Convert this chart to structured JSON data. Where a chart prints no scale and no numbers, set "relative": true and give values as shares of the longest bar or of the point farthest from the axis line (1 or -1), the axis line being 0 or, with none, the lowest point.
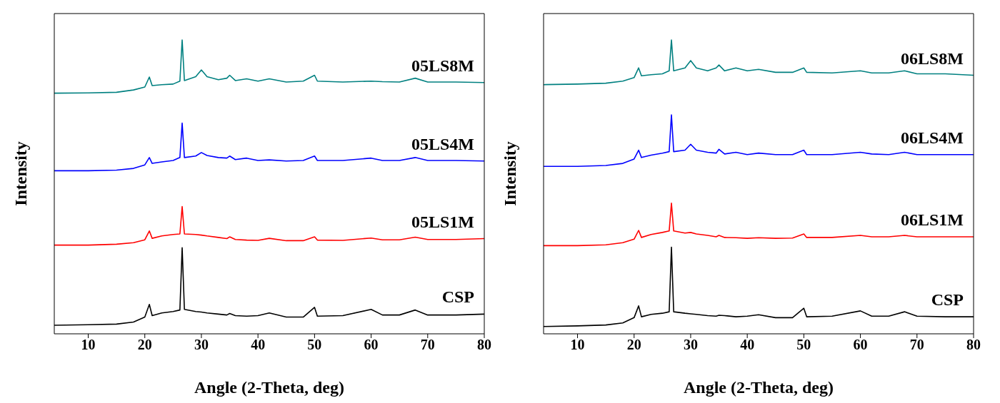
{
  "chart_data": [
    {
      "type": "line",
      "xlabel": "Angle (2-Theta, deg)",
      "ylabel": "Intensity",
      "relative": true,
      "xlim": [
        4,
        80
      ],
      "xticks": [
        10,
        20,
        30,
        40,
        50,
        60,
        70,
        80
      ],
      "grid": false,
      "legend": false,
      "marker": "none",
      "line_style": "solid",
      "x": [
        4,
        10,
        15,
        18,
        20,
        20.8,
        21.3,
        23,
        25,
        26.2,
        26.6,
        27,
        29,
        30,
        31,
        33,
        34.5,
        35,
        36,
        38,
        40,
        42,
        45,
        48,
        50,
        50.5,
        55,
        60,
        62,
        65,
        67.8,
        70,
        75,
        80
      ],
      "series": [
        {
          "name": "CSP",
          "color": "#000000",
          "values": [
            0.029,
            0.031,
            0.033,
            0.04,
            0.057,
            0.1,
            0.062,
            0.071,
            0.076,
            0.081,
            0.293,
            0.083,
            0.076,
            0.074,
            0.071,
            0.067,
            0.064,
            0.069,
            0.062,
            0.06,
            0.062,
            0.071,
            0.057,
            0.057,
            0.09,
            0.06,
            0.062,
            0.083,
            0.064,
            0.064,
            0.081,
            0.064,
            0.064,
            0.067
          ]
        },
        {
          "name": "05LS1M",
          "color": "#ff0000",
          "values": [
            0.302,
            0.302,
            0.305,
            0.31,
            0.32,
            0.35,
            0.325,
            0.333,
            0.338,
            0.34,
            0.433,
            0.34,
            0.338,
            0.336,
            0.333,
            0.328,
            0.324,
            0.33,
            0.321,
            0.319,
            0.318,
            0.325,
            0.317,
            0.317,
            0.33,
            0.319,
            0.318,
            0.326,
            0.32,
            0.32,
            0.329,
            0.321,
            0.321,
            0.324
          ]
        },
        {
          "name": "05LS4M",
          "color": "#0000ff",
          "values": [
            0.555,
            0.555,
            0.557,
            0.563,
            0.575,
            0.6,
            0.58,
            0.585,
            0.59,
            0.6,
            0.717,
            0.6,
            0.605,
            0.617,
            0.607,
            0.6,
            0.598,
            0.605,
            0.593,
            0.598,
            0.59,
            0.592,
            0.588,
            0.59,
            0.605,
            0.59,
            0.59,
            0.598,
            0.59,
            0.59,
            0.6,
            0.59,
            0.59,
            0.588
          ]
        },
        {
          "name": "05LS8M",
          "color": "#008080",
          "values": [
            0.819,
            0.82,
            0.822,
            0.83,
            0.84,
            0.874,
            0.845,
            0.848,
            0.85,
            0.86,
            1.0,
            0.862,
            0.875,
            0.898,
            0.875,
            0.865,
            0.87,
            0.88,
            0.862,
            0.868,
            0.86,
            0.868,
            0.857,
            0.86,
            0.88,
            0.86,
            0.857,
            0.86,
            0.858,
            0.857,
            0.87,
            0.857,
            0.857,
            0.855
          ]
        }
      ]
    },
    {
      "type": "line",
      "xlabel": "Angle (2-Theta, deg)",
      "ylabel": "Intensity",
      "relative": true,
      "xlim": [
        4,
        80
      ],
      "xticks": [
        10,
        20,
        30,
        40,
        50,
        60,
        70,
        80
      ],
      "grid": false,
      "legend": false,
      "marker": "none",
      "line_style": "solid",
      "x": [
        4,
        10,
        15,
        18,
        20,
        20.8,
        21.3,
        23,
        25,
        26.2,
        26.6,
        27,
        29,
        30,
        31,
        33,
        34.5,
        35,
        36,
        38,
        40,
        42,
        45,
        48,
        50,
        50.5,
        55,
        60,
        62,
        65,
        67.8,
        70,
        75,
        80
      ],
      "series": [
        {
          "name": "CSP",
          "color": "#000000",
          "values": [
            0.025,
            0.027,
            0.03,
            0.037,
            0.055,
            0.095,
            0.058,
            0.066,
            0.07,
            0.075,
            0.295,
            0.075,
            0.07,
            0.068,
            0.066,
            0.062,
            0.06,
            0.063,
            0.062,
            0.058,
            0.06,
            0.065,
            0.055,
            0.055,
            0.087,
            0.058,
            0.06,
            0.078,
            0.06,
            0.06,
            0.075,
            0.06,
            0.058,
            0.058
          ]
        },
        {
          "name": "06LS1M",
          "color": "#ff0000",
          "values": [
            0.3,
            0.3,
            0.303,
            0.31,
            0.322,
            0.352,
            0.328,
            0.338,
            0.345,
            0.35,
            0.445,
            0.35,
            0.343,
            0.345,
            0.34,
            0.335,
            0.33,
            0.335,
            0.328,
            0.327,
            0.325,
            0.327,
            0.325,
            0.326,
            0.34,
            0.328,
            0.328,
            0.335,
            0.33,
            0.33,
            0.335,
            0.33,
            0.33,
            0.33
          ]
        },
        {
          "name": "06LS4M",
          "color": "#0000ff",
          "values": [
            0.57,
            0.57,
            0.573,
            0.58,
            0.595,
            0.625,
            0.6,
            0.608,
            0.615,
            0.62,
            0.745,
            0.62,
            0.625,
            0.645,
            0.625,
            0.618,
            0.615,
            0.628,
            0.612,
            0.618,
            0.61,
            0.615,
            0.61,
            0.61,
            0.625,
            0.61,
            0.61,
            0.618,
            0.612,
            0.61,
            0.618,
            0.61,
            0.61,
            0.61
          ]
        },
        {
          "name": "06LS8M",
          "color": "#008080",
          "values": [
            0.848,
            0.85,
            0.853,
            0.86,
            0.872,
            0.905,
            0.878,
            0.882,
            0.885,
            0.895,
            1.0,
            0.895,
            0.905,
            0.93,
            0.905,
            0.895,
            0.905,
            0.915,
            0.895,
            0.905,
            0.895,
            0.9,
            0.89,
            0.89,
            0.905,
            0.89,
            0.888,
            0.895,
            0.888,
            0.888,
            0.895,
            0.885,
            0.885,
            0.88
          ]
        }
      ]
    }
  ]
}
